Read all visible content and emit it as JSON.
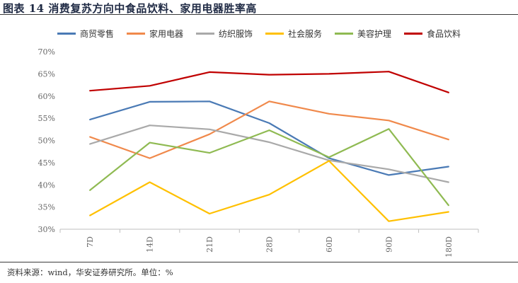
{
  "figure": {
    "title": "图表 14 消费复苏方向中食品饮料、家用电器胜率高",
    "source": "资料来源：wind，华安证券研究所。单位：%"
  },
  "chart_data": {
    "type": "line",
    "categories": [
      "7D",
      "14D",
      "21D",
      "28D",
      "60D",
      "90D",
      "180D"
    ],
    "ylim": [
      30,
      70
    ],
    "yticks": [
      "30%",
      "35%",
      "40%",
      "45%",
      "50%",
      "55%",
      "60%",
      "65%",
      "70%"
    ],
    "xlabel": "",
    "ylabel": "",
    "grid": false,
    "legend_position": "top",
    "series": [
      {
        "name": "商贸零售",
        "color": "#4a7ab5",
        "values": [
          54.7,
          58.7,
          58.8,
          53.9,
          46.0,
          42.2,
          44.1
        ]
      },
      {
        "name": "家用电器",
        "color": "#f0894b",
        "values": [
          50.8,
          46.0,
          51.4,
          58.8,
          56.0,
          54.5,
          50.2
        ]
      },
      {
        "name": "纺织服饰",
        "color": "#a9a9a9",
        "values": [
          49.2,
          53.4,
          52.5,
          49.6,
          45.5,
          43.5,
          40.6
        ]
      },
      {
        "name": "社会服务",
        "color": "#ffc000",
        "values": [
          33.1,
          40.6,
          33.5,
          37.8,
          45.4,
          31.8,
          33.9
        ]
      },
      {
        "name": "美容护理",
        "color": "#8fba52",
        "values": [
          38.8,
          49.5,
          47.2,
          52.3,
          46.2,
          52.6,
          35.4
        ]
      },
      {
        "name": "食品饮料",
        "color": "#c00000",
        "values": [
          61.2,
          62.3,
          65.4,
          64.8,
          65.0,
          65.5,
          60.8
        ]
      }
    ]
  }
}
